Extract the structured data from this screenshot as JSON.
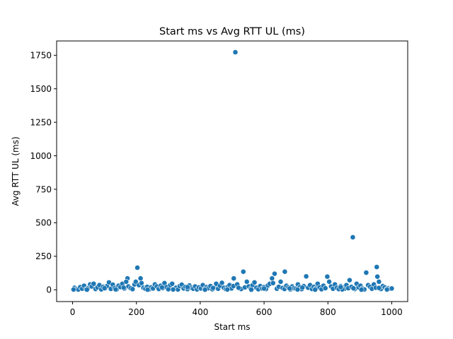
{
  "chart_data": {
    "type": "scatter",
    "title": "Start ms vs Avg RTT UL (ms)",
    "xlabel": "Start ms",
    "ylabel": "Avg RTT UL (ms)",
    "xlim": [
      -50,
      1050
    ],
    "ylim": [
      -88,
      1857
    ],
    "xticks": [
      0,
      200,
      400,
      600,
      800,
      1000
    ],
    "yticks": [
      0,
      250,
      500,
      750,
      1000,
      1250,
      1500,
      1750
    ],
    "grid": false,
    "legend": "none",
    "marker_color": "#1f77b4",
    "points": [
      [
        510,
        1773
      ],
      [
        878,
        392
      ],
      [
        203,
        165
      ],
      [
        953,
        170
      ],
      [
        535,
        135
      ],
      [
        665,
        135
      ],
      [
        633,
        120
      ],
      [
        920,
        128
      ],
      [
        732,
        100
      ],
      [
        955,
        98
      ],
      [
        798,
        98
      ],
      [
        172,
        85
      ],
      [
        505,
        85
      ],
      [
        625,
        85
      ],
      [
        213,
        85
      ],
      [
        868,
        72
      ],
      [
        6,
        15
      ],
      [
        12,
        5
      ],
      [
        18,
        2
      ],
      [
        24,
        20
      ],
      [
        30,
        8
      ],
      [
        36,
        30
      ],
      [
        42,
        4
      ],
      [
        48,
        12
      ],
      [
        55,
        40
      ],
      [
        60,
        25
      ],
      [
        66,
        45
      ],
      [
        72,
        6
      ],
      [
        78,
        18
      ],
      [
        84,
        35
      ],
      [
        90,
        3
      ],
      [
        96,
        22
      ],
      [
        102,
        10
      ],
      [
        108,
        28
      ],
      [
        114,
        55
      ],
      [
        120,
        7
      ],
      [
        126,
        38
      ],
      [
        132,
        14
      ],
      [
        138,
        2
      ],
      [
        144,
        30
      ],
      [
        150,
        20
      ],
      [
        156,
        45
      ],
      [
        162,
        9
      ],
      [
        168,
        60
      ],
      [
        175,
        25
      ],
      [
        182,
        12
      ],
      [
        188,
        5
      ],
      [
        194,
        40
      ],
      [
        198,
        60
      ],
      [
        208,
        35
      ],
      [
        216,
        50
      ],
      [
        222,
        15
      ],
      [
        228,
        8
      ],
      [
        234,
        22
      ],
      [
        240,
        3
      ],
      [
        246,
        18
      ],
      [
        252,
        10
      ],
      [
        258,
        40
      ],
      [
        264,
        25
      ],
      [
        270,
        6
      ],
      [
        276,
        30
      ],
      [
        282,
        12
      ],
      [
        288,
        50
      ],
      [
        294,
        20
      ],
      [
        300,
        4
      ],
      [
        306,
        35
      ],
      [
        312,
        45
      ],
      [
        318,
        8
      ],
      [
        324,
        15
      ],
      [
        330,
        2
      ],
      [
        336,
        28
      ],
      [
        342,
        38
      ],
      [
        348,
        10
      ],
      [
        354,
        22
      ],
      [
        360,
        5
      ],
      [
        366,
        32
      ],
      [
        372,
        15
      ],
      [
        378,
        8
      ],
      [
        384,
        25
      ],
      [
        390,
        3
      ],
      [
        396,
        18
      ],
      [
        402,
        10
      ],
      [
        408,
        35
      ],
      [
        414,
        6
      ],
      [
        420,
        20
      ],
      [
        426,
        12
      ],
      [
        432,
        28
      ],
      [
        438,
        4
      ],
      [
        444,
        16
      ],
      [
        450,
        45
      ],
      [
        456,
        8
      ],
      [
        462,
        30
      ],
      [
        468,
        52
      ],
      [
        474,
        15
      ],
      [
        480,
        5
      ],
      [
        486,
        22
      ],
      [
        492,
        35
      ],
      [
        498,
        10
      ],
      [
        504,
        28
      ],
      [
        516,
        40
      ],
      [
        522,
        12
      ],
      [
        528,
        6
      ],
      [
        540,
        18
      ],
      [
        546,
        60
      ],
      [
        552,
        25
      ],
      [
        558,
        8
      ],
      [
        564,
        35
      ],
      [
        570,
        55
      ],
      [
        576,
        15
      ],
      [
        582,
        4
      ],
      [
        588,
        28
      ],
      [
        594,
        10
      ],
      [
        600,
        20
      ],
      [
        606,
        6
      ],
      [
        612,
        32
      ],
      [
        618,
        45
      ],
      [
        628,
        50
      ],
      [
        640,
        8
      ],
      [
        646,
        22
      ],
      [
        652,
        60
      ],
      [
        658,
        14
      ],
      [
        664,
        6
      ],
      [
        670,
        30
      ],
      [
        676,
        18
      ],
      [
        682,
        3
      ],
      [
        688,
        25
      ],
      [
        694,
        12
      ],
      [
        700,
        8
      ],
      [
        706,
        40
      ],
      [
        712,
        20
      ],
      [
        718,
        5
      ],
      [
        724,
        28
      ],
      [
        738,
        15
      ],
      [
        744,
        35
      ],
      [
        750,
        6
      ],
      [
        756,
        22
      ],
      [
        762,
        10
      ],
      [
        768,
        45
      ],
      [
        774,
        18
      ],
      [
        780,
        4
      ],
      [
        786,
        30
      ],
      [
        792,
        12
      ],
      [
        804,
        60
      ],
      [
        810,
        25
      ],
      [
        816,
        8
      ],
      [
        822,
        40
      ],
      [
        828,
        15
      ],
      [
        834,
        5
      ],
      [
        840,
        28
      ],
      [
        846,
        18
      ],
      [
        852,
        8
      ],
      [
        858,
        35
      ],
      [
        864,
        12
      ],
      [
        874,
        22
      ],
      [
        884,
        6
      ],
      [
        890,
        45
      ],
      [
        896,
        18
      ],
      [
        902,
        30
      ],
      [
        908,
        10
      ],
      [
        914,
        3
      ],
      [
        926,
        35
      ],
      [
        932,
        22
      ],
      [
        938,
        8
      ],
      [
        944,
        40
      ],
      [
        950,
        15
      ],
      [
        960,
        60
      ],
      [
        966,
        6
      ],
      [
        972,
        28
      ],
      [
        978,
        18
      ],
      [
        984,
        5
      ],
      [
        990,
        12
      ],
      [
        996,
        8
      ],
      [
        1000,
        10
      ],
      [
        3,
        2
      ],
      [
        45,
        1
      ],
      [
        135,
        3
      ],
      [
        235,
        1
      ],
      [
        315,
        2
      ],
      [
        415,
        1
      ],
      [
        485,
        2
      ],
      [
        560,
        1
      ],
      [
        705,
        2
      ],
      [
        760,
        1
      ],
      [
        845,
        3
      ],
      [
        905,
        1
      ],
      [
        985,
        2
      ],
      [
        100,
        12
      ],
      [
        280,
        18
      ],
      [
        440,
        14
      ],
      [
        600,
        9
      ],
      [
        720,
        16
      ],
      [
        880,
        11
      ],
      [
        360,
        20
      ],
      [
        160,
        16
      ],
      [
        520,
        15
      ],
      [
        680,
        10
      ],
      [
        840,
        20
      ],
      [
        960,
        14
      ]
    ]
  }
}
